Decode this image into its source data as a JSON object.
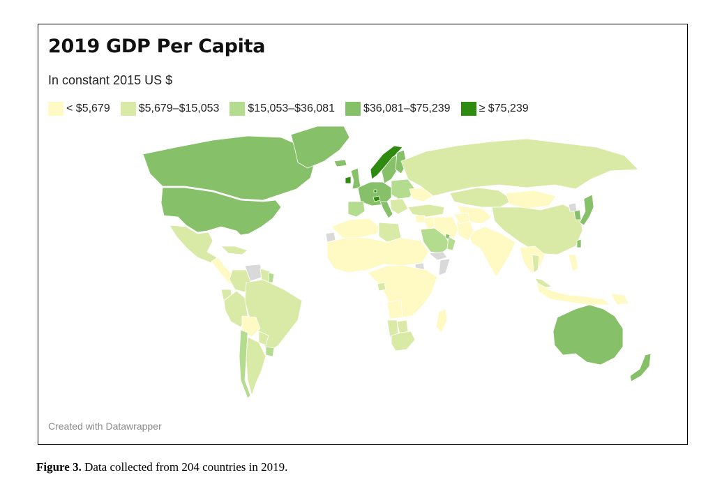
{
  "chart": {
    "title": "2019 GDP Per Capita",
    "subtitle": "In constant 2015 US $",
    "credit": "Created with Datawrapper"
  },
  "legend": [
    {
      "label": "< $5,679",
      "color": "#fff9c4"
    },
    {
      "label": "$5,679–$15,053",
      "color": "#d9eaa6"
    },
    {
      "label": "$15,053–$36,081",
      "color": "#b4dc8e"
    },
    {
      "label": "$36,081–$75,239",
      "color": "#86c069"
    },
    {
      "label": "≥ $75,239",
      "color": "#2e8b0f"
    }
  ],
  "no_data_color": "#d9d9d9",
  "caption": {
    "label": "Figure 3.",
    "text": " Data collected from 204 countries in 2019."
  },
  "map_data": {
    "type": "choropleth",
    "bins": [
      "< $5,679",
      "$5,679–$15,053",
      "$15,053–$36,081",
      "$36,081–$75,239",
      "≥ $75,239"
    ],
    "regions": [
      {
        "name": "Canada",
        "bin": 3
      },
      {
        "name": "United States",
        "bin": 3
      },
      {
        "name": "Greenland",
        "bin": 3
      },
      {
        "name": "Mexico",
        "bin": 1
      },
      {
        "name": "Central America",
        "bin": 0
      },
      {
        "name": "Caribbean",
        "bin": 1
      },
      {
        "name": "Colombia",
        "bin": 1
      },
      {
        "name": "Venezuela",
        "bin": -1
      },
      {
        "name": "Guyana",
        "bin": 1
      },
      {
        "name": "French Guiana",
        "bin": 2
      },
      {
        "name": "Ecuador",
        "bin": 1
      },
      {
        "name": "Peru",
        "bin": 1
      },
      {
        "name": "Brazil",
        "bin": 1
      },
      {
        "name": "Bolivia",
        "bin": 0
      },
      {
        "name": "Paraguay",
        "bin": 1
      },
      {
        "name": "Uruguay",
        "bin": 2
      },
      {
        "name": "Chile",
        "bin": 2
      },
      {
        "name": "Argentina",
        "bin": 1
      },
      {
        "name": "Iceland",
        "bin": 3
      },
      {
        "name": "Ireland",
        "bin": 4
      },
      {
        "name": "United Kingdom",
        "bin": 3
      },
      {
        "name": "Norway",
        "bin": 4
      },
      {
        "name": "Sweden",
        "bin": 3
      },
      {
        "name": "Finland",
        "bin": 3
      },
      {
        "name": "Western Europe",
        "bin": 3
      },
      {
        "name": "Switzerland",
        "bin": 4
      },
      {
        "name": "Luxembourg",
        "bin": 4
      },
      {
        "name": "Iberia",
        "bin": 2
      },
      {
        "name": "Italy",
        "bin": 3
      },
      {
        "name": "Eastern Europe",
        "bin": 2
      },
      {
        "name": "Balkans",
        "bin": 1
      },
      {
        "name": "Ukraine",
        "bin": 0
      },
      {
        "name": "Russia",
        "bin": 1
      },
      {
        "name": "Turkey",
        "bin": 1
      },
      {
        "name": "Kazakhstan",
        "bin": 1
      },
      {
        "name": "Central Asia",
        "bin": 0
      },
      {
        "name": "Mongolia",
        "bin": 0
      },
      {
        "name": "China",
        "bin": 1
      },
      {
        "name": "North Korea",
        "bin": -1
      },
      {
        "name": "South Korea",
        "bin": 3
      },
      {
        "name": "Japan",
        "bin": 3
      },
      {
        "name": "Taiwan",
        "bin": 3
      },
      {
        "name": "India",
        "bin": 0
      },
      {
        "name": "Pakistan",
        "bin": 0
      },
      {
        "name": "Afghanistan",
        "bin": 0
      },
      {
        "name": "Iran",
        "bin": 0
      },
      {
        "name": "Iraq",
        "bin": 0
      },
      {
        "name": "Syria",
        "bin": 0
      },
      {
        "name": "Saudi Arabia",
        "bin": 2
      },
      {
        "name": "Oman",
        "bin": 2
      },
      {
        "name": "UAE",
        "bin": 3
      },
      {
        "name": "Yemen",
        "bin": -1
      },
      {
        "name": "Southeast Asia",
        "bin": 0
      },
      {
        "name": "Thailand",
        "bin": 1
      },
      {
        "name": "Malaysia",
        "bin": 1
      },
      {
        "name": "Indonesia",
        "bin": 0
      },
      {
        "name": "Philippines",
        "bin": 0
      },
      {
        "name": "Papua New Guinea",
        "bin": 0
      },
      {
        "name": "North Africa",
        "bin": 0
      },
      {
        "name": "Libya",
        "bin": 1
      },
      {
        "name": "Western Sahara",
        "bin": -1
      },
      {
        "name": "Sahel & West Africa",
        "bin": 0
      },
      {
        "name": "Sudan",
        "bin": -1
      },
      {
        "name": "Somalia",
        "bin": -1
      },
      {
        "name": "Central & East Africa",
        "bin": 0
      },
      {
        "name": "Gabon",
        "bin": 1
      },
      {
        "name": "Angola",
        "bin": 0
      },
      {
        "name": "Namibia",
        "bin": 1
      },
      {
        "name": "Botswana",
        "bin": 1
      },
      {
        "name": "South Africa",
        "bin": 1
      },
      {
        "name": "Madagascar",
        "bin": 0
      },
      {
        "name": "Australia",
        "bin": 3
      },
      {
        "name": "New Zealand",
        "bin": 3
      }
    ]
  }
}
